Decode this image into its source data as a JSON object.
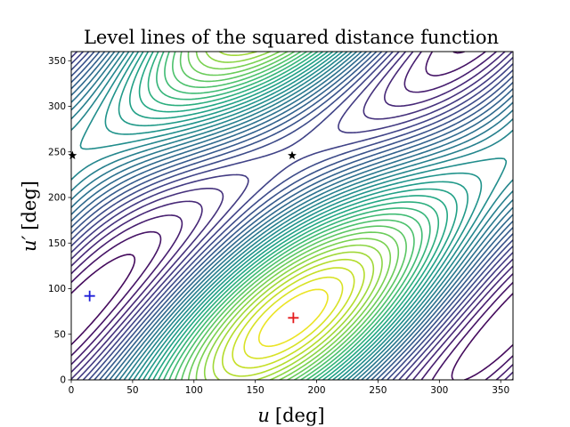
{
  "chart_data": {
    "type": "contour",
    "title": "Level lines of the squared distance function",
    "xlabel": {
      "var": "u",
      "unit": "[deg]"
    },
    "ylabel": {
      "var": "u′",
      "unit": "[deg]"
    },
    "xlim": [
      0,
      360
    ],
    "ylim": [
      0,
      360
    ],
    "xticks": [
      0,
      50,
      100,
      150,
      200,
      250,
      300,
      350
    ],
    "yticks": [
      0,
      50,
      100,
      150,
      200,
      250,
      300,
      350
    ],
    "colormap": "viridis",
    "grid": false,
    "minimum": {
      "x": 181,
      "y": 68
    },
    "maximum_secondary": {
      "x": 15,
      "y": 92
    },
    "saddles": [
      {
        "x": 1,
        "y": 246
      },
      {
        "x": 180,
        "y": 246
      }
    ],
    "markers": [
      {
        "type": "plus",
        "color": "#e41a1c",
        "x": 181,
        "y": 68
      },
      {
        "type": "plus",
        "color": "#1f1fd8",
        "x": 15,
        "y": 92
      },
      {
        "type": "star",
        "color": "#000000",
        "x": 1,
        "y": 246
      },
      {
        "type": "star",
        "color": "#000000",
        "x": 180,
        "y": 246
      }
    ]
  }
}
